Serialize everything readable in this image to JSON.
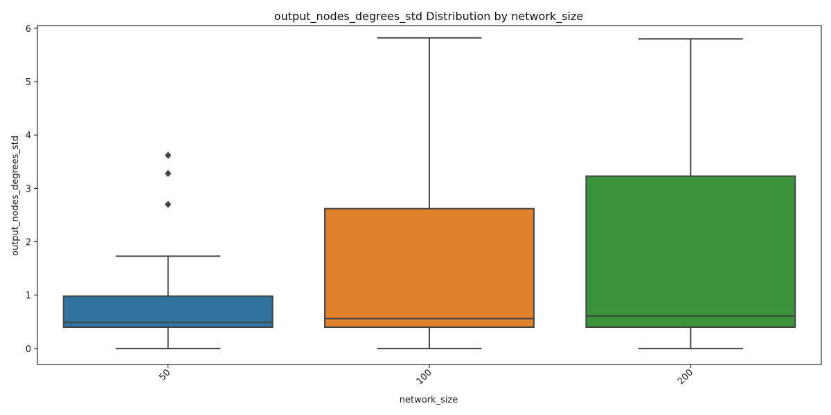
{
  "chart_data": {
    "type": "box",
    "title": "output_nodes_degrees_std Distribution by network_size",
    "xlabel": "network_size",
    "ylabel": "output_nodes_degrees_std",
    "ylim": [
      -0.3,
      6.05
    ],
    "yticks": [
      0,
      1,
      2,
      3,
      4,
      5,
      6
    ],
    "categories": [
      "50",
      "100",
      "200"
    ],
    "grid": false,
    "xtick_rotation": 45,
    "boxes": [
      {
        "category": "50",
        "whisker_low": 0.0,
        "q1": 0.4,
        "median": 0.49,
        "q3": 0.98,
        "whisker_high": 1.73,
        "outliers": [
          2.7,
          3.28,
          3.62
        ],
        "color": "#3274a1"
      },
      {
        "category": "100",
        "whisker_low": 0.0,
        "q1": 0.4,
        "median": 0.56,
        "q3": 2.62,
        "whisker_high": 5.82,
        "outliers": [],
        "color": "#e1812c"
      },
      {
        "category": "200",
        "whisker_low": 0.0,
        "q1": 0.4,
        "median": 0.61,
        "q3": 3.23,
        "whisker_high": 5.8,
        "outliers": [],
        "color": "#3a923a"
      }
    ]
  }
}
